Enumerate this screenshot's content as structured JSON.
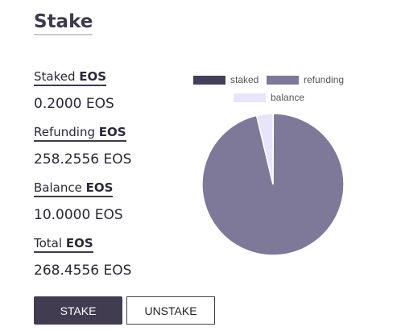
{
  "header": {
    "title": "Stake"
  },
  "stats": [
    {
      "label": "Staked",
      "unit": "EOS",
      "value": "0.2000 EOS"
    },
    {
      "label": "Refunding",
      "unit": "EOS",
      "value": "258.2556 EOS"
    },
    {
      "label": "Balance",
      "unit": "EOS",
      "value": "10.0000 EOS"
    },
    {
      "label": "Total",
      "unit": "EOS",
      "value": "268.4556 EOS"
    }
  ],
  "buttons": [
    "STAKE",
    "UNSTAKE"
  ],
  "chart_data": {
    "type": "pie",
    "categories": [
      "staked",
      "refunding",
      "balance"
    ],
    "values": [
      0.2,
      258.2556,
      10
    ],
    "colors": [
      "#433f57",
      "#7e7899",
      "#e8e5fb"
    ]
  }
}
